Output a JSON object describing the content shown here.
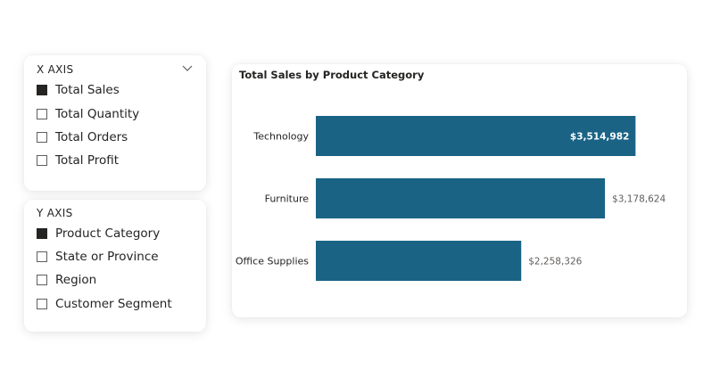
{
  "x_axis_slicer": {
    "title": "X AXIS",
    "chevron_icon": "chevron-down-icon",
    "options": [
      {
        "label": "Total Sales",
        "checked": true
      },
      {
        "label": "Total Quantity",
        "checked": false
      },
      {
        "label": "Total Orders",
        "checked": false
      },
      {
        "label": "Total Profit",
        "checked": false
      }
    ]
  },
  "y_axis_slicer": {
    "title": "Y AXIS",
    "options": [
      {
        "label": "Product Category",
        "checked": true
      },
      {
        "label": "State or Province",
        "checked": false
      },
      {
        "label": "Region",
        "checked": false
      },
      {
        "label": "Customer Segment",
        "checked": false
      }
    ]
  },
  "colors": {
    "bar": "#1a6385",
    "checkbox_checked": "#252423",
    "label_inside": "#ffffff",
    "label_outside": "#605e5c"
  },
  "chart_data": {
    "type": "bar",
    "orientation": "horizontal",
    "title": "Total Sales by Product Category",
    "categories": [
      "Technology",
      "Furniture",
      "Office Supplies"
    ],
    "values": [
      3514982,
      3178624,
      2258326
    ],
    "data_labels": [
      "$3,514,982",
      "$3,178,624",
      "$2,258,326"
    ],
    "xlim": [
      0,
      3600000
    ],
    "grid": false,
    "legend": "none"
  }
}
